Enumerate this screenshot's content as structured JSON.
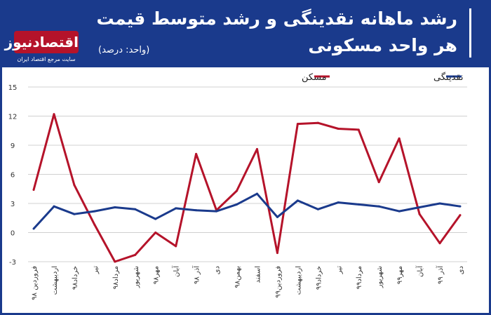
{
  "header": {
    "title_line1": "رشد ماهانه نقدینگی و رشد متوسط قیمت",
    "title_line2": "هر واحد مسکونی",
    "unit": "(واحد: درصد)"
  },
  "logo": {
    "name": "اقتصادنیوز",
    "tagline": "سایت مرجع اقتصاد ایران"
  },
  "colors": {
    "header": "#1a3a8c",
    "housing": "#b5132a",
    "liquidity": "#1a3a8c"
  },
  "chart_data": {
    "type": "line",
    "categories": [
      "فروردین ۹۸",
      "اردیبهشت",
      "خرداد۹۸",
      "تیر",
      "مرداد۹۸",
      "شهریور",
      "مهر۹۸",
      "آبان",
      "آذر ۹۸",
      "دی",
      "بهمن۹۸",
      "اسفند",
      "فروردین۹۹",
      "اردیبهشت",
      "خرداد۹۹",
      "تیر",
      "مرداد۹۹",
      "شهریور",
      "مهر۹۹",
      "آبان",
      "آذر ۹۹",
      "دی"
    ],
    "series": [
      {
        "name": "مسکن",
        "color": "#b5132a",
        "values": [
          4.4,
          12.2,
          4.9,
          0.8,
          -3.0,
          -2.3,
          0.0,
          -1.4,
          8.1,
          2.3,
          4.3,
          8.6,
          -2.1,
          11.2,
          11.3,
          10.7,
          10.6,
          5.2,
          9.7,
          1.9,
          -1.1,
          1.8
        ]
      },
      {
        "name": "نقدینگی",
        "color": "#1a3a8c",
        "values": [
          0.4,
          2.7,
          1.9,
          2.2,
          2.6,
          2.4,
          1.4,
          2.5,
          2.3,
          2.2,
          2.9,
          4.0,
          1.6,
          3.3,
          2.4,
          3.1,
          2.9,
          2.7,
          2.2,
          2.6,
          3.0,
          2.7
        ]
      }
    ],
    "ylim": [
      -3,
      15
    ],
    "yticks": [
      "15",
      "12",
      "9",
      "6",
      "3",
      "0",
      "-3"
    ],
    "grid": true,
    "legend_position": "top"
  }
}
